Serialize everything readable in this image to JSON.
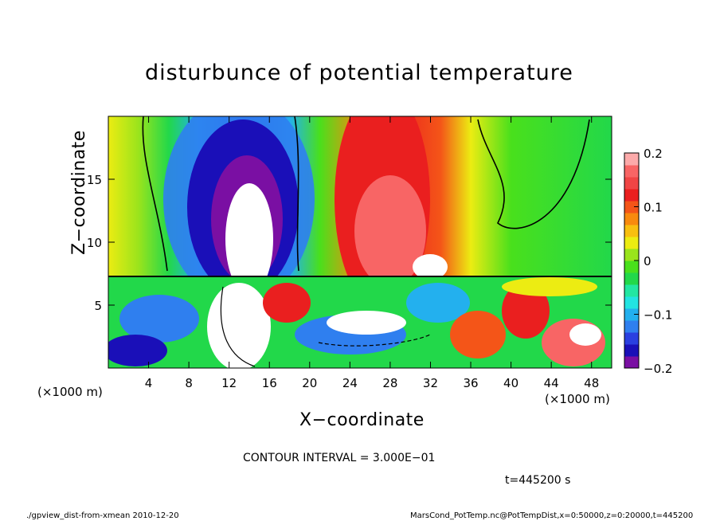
{
  "chart_data": {
    "type": "heatmap",
    "title": "disturbunce of potential temperature",
    "xlabel": "X−coordinate",
    "ylabel": "Z−coordinate",
    "x_unit": "(×1000 m)",
    "xlim": [
      0,
      50
    ],
    "ylim": [
      0,
      20
    ],
    "x_ticks": [
      "4",
      "8",
      "12",
      "16",
      "20",
      "24",
      "28",
      "32",
      "36",
      "40",
      "44",
      "48"
    ],
    "x_tick_values": [
      4,
      8,
      12,
      16,
      20,
      24,
      28,
      32,
      36,
      40,
      44,
      48
    ],
    "y_ticks": [
      "5",
      "10",
      "15"
    ],
    "y_tick_values": [
      5,
      10,
      15
    ],
    "colorbar": {
      "range": [
        -0.2,
        0.2
      ],
      "tick_labels": [
        "0.2",
        "0.1",
        "0",
        "−0.1",
        "−0.2"
      ],
      "tick_values": [
        0.2,
        0.1,
        0,
        -0.1,
        -0.2
      ],
      "colors": [
        "#7a0fa3",
        "#1a0fb8",
        "#2a3fe0",
        "#2f7fef",
        "#23b0ee",
        "#22e4e2",
        "#22e7a2",
        "#22d84a",
        "#49e01c",
        "#9ae41c",
        "#ecec12",
        "#f8bf10",
        "#f88a0e",
        "#f45518",
        "#ea1f1f",
        "#f04545",
        "#f86565",
        "#fcaaaa"
      ]
    },
    "contour_interval": "CONTOUR INTERVAL = 3.000E−01",
    "time_label": "t=445200 s"
  },
  "footer": {
    "left": "./gpview_dist-from-xmean  2010-12-20",
    "right": "MarsCond_PotTemp.nc@PotTempDist,x=0:50000,z=0:20000,t=445200"
  }
}
